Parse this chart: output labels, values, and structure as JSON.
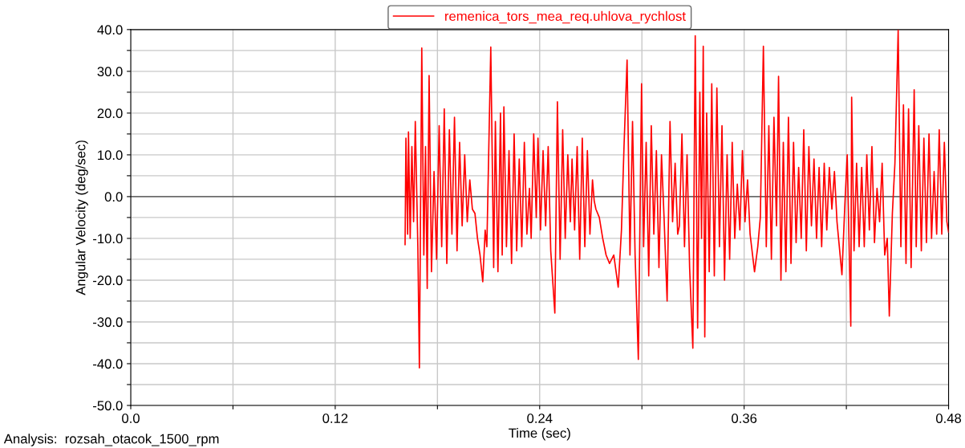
{
  "chart_data": {
    "type": "line",
    "xlabel": "Time (sec)",
    "ylabel": "Angular Velocity (deg/sec)",
    "annotations": [
      "Analysis:  rozsah_otacok_1500_rpm"
    ],
    "xlim": [
      0,
      0.48
    ],
    "ylim": [
      -50,
      40
    ],
    "xticks": [
      {
        "value": 0,
        "label": "0.0"
      },
      {
        "value": 0.06,
        "label": null
      },
      {
        "value": 0.12,
        "label": "0.12"
      },
      {
        "value": 0.18,
        "label": null
      },
      {
        "value": 0.24,
        "label": "0.24"
      },
      {
        "value": 0.3,
        "label": null
      },
      {
        "value": 0.36,
        "label": "0.36"
      },
      {
        "value": 0.42,
        "label": null
      },
      {
        "value": 0.48,
        "label": "0.48"
      }
    ],
    "yticks": [
      {
        "value": -50,
        "label": "-50.0"
      },
      {
        "value": -45,
        "label": null
      },
      {
        "value": -40,
        "label": "-40.0"
      },
      {
        "value": -35,
        "label": null
      },
      {
        "value": -30,
        "label": "-30.0"
      },
      {
        "value": -25,
        "label": null
      },
      {
        "value": -20,
        "label": "-20.0"
      },
      {
        "value": -15,
        "label": null
      },
      {
        "value": -10,
        "label": "-10.0"
      },
      {
        "value": -5,
        "label": null
      },
      {
        "value": 0,
        "label": "0.0"
      },
      {
        "value": 5,
        "label": null
      },
      {
        "value": 10,
        "label": "10.0"
      },
      {
        "value": 15,
        "label": null
      },
      {
        "value": 20,
        "label": "20.0"
      },
      {
        "value": 25,
        "label": null
      },
      {
        "value": 30,
        "label": "30.0"
      },
      {
        "value": 35,
        "label": null
      },
      {
        "value": 40,
        "label": "40.0"
      }
    ],
    "grid": true,
    "legend": "top",
    "marker": "none",
    "line_style": "solid",
    "ref_lines": [
      {
        "axis": "y",
        "value": 0,
        "label": null,
        "color": "#444444"
      }
    ],
    "series": [
      {
        "name": "remenica_tors_mea_req.uhlova_rychlost",
        "color": "#ff0000",
        "x": [
          0.161,
          0.1615,
          0.1625,
          0.163,
          0.164,
          0.165,
          0.166,
          0.167,
          0.1685,
          0.1694,
          0.1708,
          0.172,
          0.173,
          0.174,
          0.1751,
          0.1765,
          0.178,
          0.1795,
          0.181,
          0.1825,
          0.184,
          0.1855,
          0.187,
          0.1885,
          0.19,
          0.1915,
          0.193,
          0.1945,
          0.196,
          0.1975,
          0.199,
          0.2005,
          0.202,
          0.2035,
          0.205,
          0.2066,
          0.208,
          0.209,
          0.2113,
          0.213,
          0.214,
          0.2155,
          0.217,
          0.218,
          0.219,
          0.2205,
          0.222,
          0.2235,
          0.225,
          0.2265,
          0.228,
          0.2295,
          0.231,
          0.2325,
          0.234,
          0.235,
          0.2365,
          0.238,
          0.239,
          0.2405,
          0.242,
          0.2435,
          0.245,
          0.2465,
          0.2489,
          0.2504,
          0.252,
          0.2535,
          0.255,
          0.2565,
          0.258,
          0.259,
          0.2605,
          0.262,
          0.2635,
          0.265,
          0.2665,
          0.268,
          0.2695,
          0.271,
          0.272,
          0.273,
          0.275,
          0.277,
          0.279,
          0.281,
          0.2835,
          0.2861,
          0.288,
          0.2895,
          0.2913,
          0.293,
          0.2945,
          0.296,
          0.2979,
          0.2998,
          0.301,
          0.3025,
          0.304,
          0.3055,
          0.307,
          0.3085,
          0.31,
          0.3115,
          0.313,
          0.3148,
          0.3165,
          0.318,
          0.3195,
          0.321,
          0.322,
          0.3235,
          0.325,
          0.3265,
          0.328,
          0.3299,
          0.3313,
          0.3327,
          0.334,
          0.335,
          0.336,
          0.3369,
          0.338,
          0.3395,
          0.341,
          0.3425,
          0.344,
          0.3455,
          0.347,
          0.3485,
          0.35,
          0.3515,
          0.353,
          0.3545,
          0.356,
          0.3575,
          0.359,
          0.3605,
          0.362,
          0.3635,
          0.3661,
          0.368,
          0.3695,
          0.3713,
          0.373,
          0.3745,
          0.376,
          0.3775,
          0.379,
          0.3802,
          0.3816,
          0.383,
          0.3845,
          0.386,
          0.3875,
          0.389,
          0.3905,
          0.392,
          0.3935,
          0.395,
          0.3965,
          0.398,
          0.3995,
          0.401,
          0.4025,
          0.404,
          0.4055,
          0.407,
          0.4085,
          0.41,
          0.4115,
          0.413,
          0.4145,
          0.4174,
          0.419,
          0.4205,
          0.4226,
          0.4231,
          0.4245,
          0.426,
          0.4275,
          0.429,
          0.4305,
          0.432,
          0.4335,
          0.435,
          0.4365,
          0.438,
          0.4395,
          0.441,
          0.4425,
          0.444,
          0.4452,
          0.447,
          0.4485,
          0.4504,
          0.452,
          0.4535,
          0.455,
          0.4565,
          0.458,
          0.4598,
          0.461,
          0.4625,
          0.464,
          0.4655,
          0.467,
          0.4685,
          0.47,
          0.4715,
          0.473,
          0.4745,
          0.476,
          0.4775,
          0.479,
          0.48
        ],
        "values": [
          -11.5,
          14,
          -9,
          15.5,
          -10,
          12,
          -6,
          18,
          -12,
          -41,
          35.6,
          -14,
          12,
          -22,
          29,
          -18,
          6,
          -15,
          17,
          -12,
          21,
          -16,
          16,
          -9,
          19,
          -13,
          13,
          -7,
          10,
          -6,
          4,
          -3,
          -4,
          -10,
          -14,
          -20.4,
          -8,
          -12,
          35.8,
          -17,
          18,
          -18,
          20,
          -14,
          21.5,
          -12,
          11,
          -16,
          15,
          -13,
          9,
          -12,
          13,
          -9,
          2,
          -10,
          15,
          -5,
          14,
          -8,
          11,
          -7,
          12,
          -13,
          -27.9,
          22.7,
          -15,
          16,
          -10,
          10,
          -6,
          9,
          -8,
          12,
          -15,
          14,
          -12,
          11,
          -9,
          4,
          -1,
          -3,
          -5,
          -10,
          -14,
          -16,
          -14,
          -21.7,
          -8,
          12,
          32.7,
          -14,
          18,
          -14,
          -39,
          27,
          -12,
          13,
          -19,
          17,
          -9,
          11,
          -17,
          10,
          -5,
          -25,
          18,
          -6,
          8,
          -9,
          -7,
          15,
          -12,
          10,
          -17,
          -36.3,
          38.5,
          -31.5,
          25,
          -10,
          36,
          -33.6,
          20,
          -18,
          27,
          -19,
          26,
          -12,
          17,
          -20,
          10,
          -15,
          13,
          -10,
          3,
          -8,
          11,
          -6,
          4,
          -9,
          -18,
          -12,
          -5,
          36,
          -12,
          17,
          -15,
          19,
          -7,
          28.8,
          -20,
          13,
          -18,
          19,
          -16,
          13,
          -11,
          7,
          -10,
          16,
          -13,
          12,
          -7,
          9,
          -10,
          7,
          -12,
          8,
          -8,
          7,
          -3,
          6,
          -6,
          -18.7,
          -3,
          10,
          -31,
          23.8,
          -13,
          8,
          -12,
          7,
          -12,
          10,
          -8,
          12,
          -11,
          2,
          -6,
          8,
          -14,
          -10,
          -28.6,
          -4,
          8,
          39.8,
          -12,
          22,
          -16,
          21,
          -17,
          25.6,
          -12,
          17,
          -13,
          14,
          -11,
          15,
          -10,
          6,
          -9,
          16,
          -9,
          13,
          -6,
          -8.5
        ]
      }
    ]
  }
}
